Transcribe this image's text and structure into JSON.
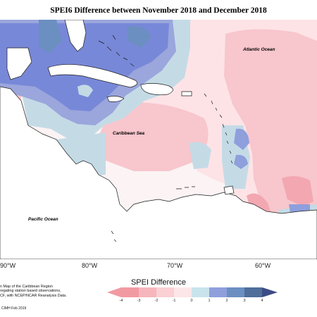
{
  "title": "SPEI6 Difference between November 2018 and December 2018",
  "map": {
    "labels": {
      "atlantic": "Atlantic Ocean",
      "caribbean": "Caribbean Sea",
      "pacific": "Pacific Ocean"
    },
    "longitude_ticks": [
      "90°W",
      "80°W",
      "70°W",
      "60°W"
    ]
  },
  "legend": {
    "title": "SPEI Difference",
    "ticks": [
      "-4",
      "-3",
      "-2",
      "-1",
      "0",
      "1",
      "2",
      "3",
      "4"
    ],
    "colors": [
      "#f29aa2",
      "#f6b6bc",
      "#fad0d4",
      "#fde6e8",
      "#c9e3ec",
      "#8e9fdc",
      "#6b8fc0",
      "#4f6e9a",
      "#3c4a86"
    ]
  },
  "description_lines": [
    "n Map of the Caribbean Region",
    "regating station based observations,",
    "CF, with NCEP/NCAR Reanalysis Data."
  ],
  "credit": "CIMH Feb 2019",
  "colors": {
    "positive_strong": "#7888d8",
    "positive_medium": "#9aa6dc",
    "positive_light": "#c4dbe6",
    "neutral": "#fbf3f4",
    "negative_light": "#fde3e6",
    "negative_medium": "#f8c6cd",
    "negative_strong": "#f2a7b1",
    "land": "#ffffff",
    "outline": "#1a1a1a"
  }
}
